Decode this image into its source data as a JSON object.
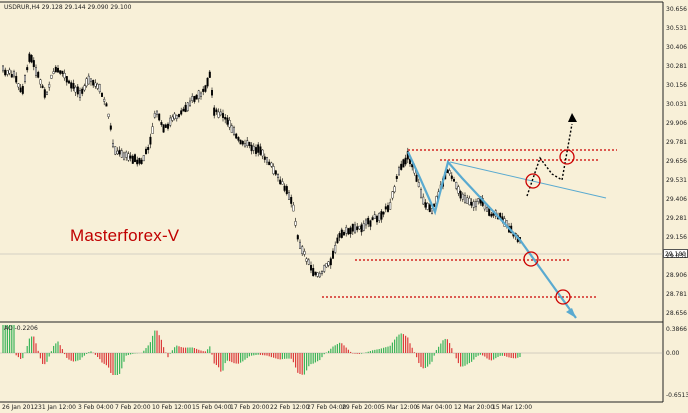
{
  "chart": {
    "header": "USDRUR,H4  29.128 29.144 29.090 29.100",
    "watermark": "Masterforex-V",
    "current_price": "29.100"
  },
  "price_axis": {
    "ticks": [
      "30.656",
      "30.531",
      "30.406",
      "30.281",
      "30.156",
      "30.031",
      "29.906",
      "29.781",
      "29.656",
      "29.531",
      "29.406",
      "29.281",
      "29.156",
      "29.031",
      "28.906",
      "28.781",
      "28.656"
    ]
  },
  "indicator": {
    "label": "AO -0.2206",
    "ticks": [
      "0.3866",
      "0.00",
      "-0.6513"
    ]
  },
  "time_axis": {
    "ticks": [
      "26 Jan 2012",
      "31 Jan 12:00",
      "3 Feb 04:00",
      "7 Feb 20:00",
      "10 Feb 12:00",
      "15 Feb 04:00",
      "17 Feb 20:00",
      "22 Feb 12:00",
      "27 Feb 04:00",
      "29 Feb 20:00",
      "5 Mar 12:00",
      "6 Mar 04:00",
      "12 Mar 20:00",
      "15 Mar 12:00"
    ]
  },
  "colors": {
    "background": "#f8f0d8",
    "candle": "#000000",
    "wave": "#5aaad0",
    "support": "#cc0000",
    "ao_up": "#3cb45a",
    "ao_down": "#dc3c3c"
  }
}
